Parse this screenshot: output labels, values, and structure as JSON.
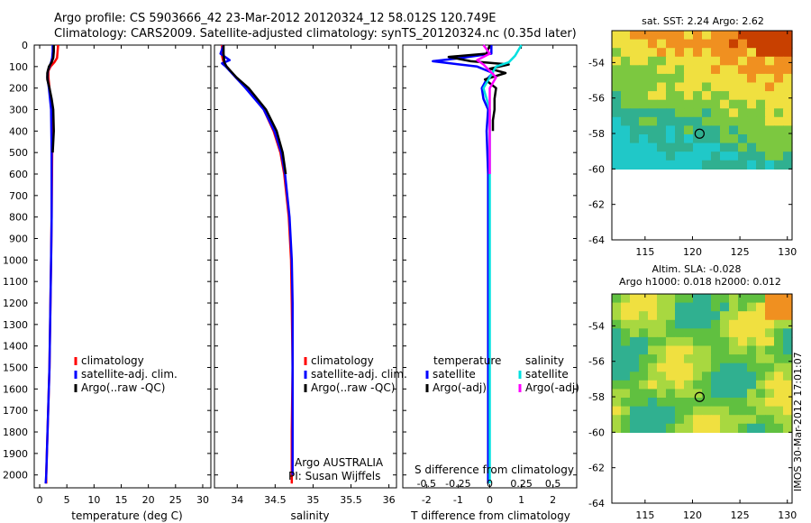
{
  "header": {
    "line1": "Argo profile: CS 5903666_42 23-Mar-2012 20120324_12 58.012S 120.749E",
    "line2": "Climatology: CARS2009. Satellite-adjusted climatology: synTS_20120324.nc (0.35d later)"
  },
  "credit": {
    "line1": "Argo AUSTRALIA",
    "line2": "PI: Susan Wijffels"
  },
  "stamp": "IMOS 30-Mar-2012 17:01:07",
  "colors": {
    "climatology": "#ff0000",
    "satellite": "#0000ff",
    "argo": "#000000",
    "t_satellite": "#0000ff",
    "t_argo": "#000000",
    "s_satellite": "#00e0e0",
    "s_argo": "#ff00ff"
  },
  "chart_data": [
    {
      "type": "line",
      "name": "temperature-profile",
      "xlabel": "temperature (deg C)",
      "ylabel": "",
      "xlim": [
        -1,
        31.5
      ],
      "ylim": [
        2060,
        0
      ],
      "x_ticks": [
        0,
        5,
        10,
        15,
        20,
        25,
        30
      ],
      "x_tick_labels": [
        "0",
        "5",
        "10",
        "15",
        "20",
        "25",
        "30"
      ],
      "y_ticks": [
        0,
        100,
        200,
        300,
        400,
        500,
        600,
        700,
        800,
        900,
        1000,
        1100,
        1200,
        1300,
        1400,
        1500,
        1600,
        1700,
        1800,
        1900,
        2000
      ],
      "y_tick_labels": [
        "0",
        "100",
        "200",
        "300",
        "400",
        "500",
        "600",
        "700",
        "800",
        "900",
        "1000",
        "1100",
        "1200",
        "1300",
        "1400",
        "1500",
        "1600",
        "1700",
        "1800",
        "1900",
        "2000"
      ],
      "legend": [
        "climatology",
        "satellite-adj. clim.",
        "Argo(..raw -QC)"
      ],
      "series": [
        {
          "name": "climatology",
          "color_key": "climatology",
          "depth": [
            0,
            30,
            60,
            80,
            100,
            120,
            150,
            200,
            300,
            500,
            800,
            1000,
            1500,
            2000,
            2040
          ],
          "values": [
            3.4,
            3.3,
            3.2,
            2.7,
            2.0,
            1.6,
            1.6,
            1.8,
            2.2,
            2.3,
            2.2,
            2.1,
            1.8,
            1.2,
            1.2
          ]
        },
        {
          "name": "satellite-adj. clim.",
          "color_key": "satellite",
          "depth": [
            0,
            30,
            60,
            80,
            100,
            120,
            150,
            200,
            300,
            500,
            800,
            1000,
            1500,
            2000,
            2040
          ],
          "values": [
            2.4,
            2.4,
            2.3,
            2.1,
            1.8,
            1.5,
            1.4,
            1.7,
            2.1,
            2.2,
            2.2,
            2.1,
            1.8,
            1.2,
            1.1
          ]
        },
        {
          "name": "Argo(..raw -QC)",
          "color_key": "argo",
          "depth": [
            0,
            30,
            60,
            80,
            100,
            130,
            160,
            200,
            250,
            300,
            400,
            500
          ],
          "values": [
            2.6,
            2.6,
            2.5,
            2.2,
            1.7,
            1.4,
            1.4,
            1.8,
            2.2,
            2.5,
            2.6,
            2.4
          ]
        }
      ]
    },
    {
      "type": "line",
      "name": "salinity-profile",
      "xlabel": "salinity",
      "xlim": [
        33.7,
        36.1
      ],
      "ylim": [
        2060,
        0
      ],
      "x_ticks": [
        34,
        34.5,
        35,
        35.5,
        36
      ],
      "x_tick_labels": [
        "34",
        "34.5",
        "35",
        "35.5",
        "36"
      ],
      "legend": [
        "climatology",
        "satellite-adj. clim.",
        "Argo(..raw -QC)"
      ],
      "series": [
        {
          "name": "climatology",
          "color_key": "climatology",
          "depth": [
            0,
            50,
            80,
            100,
            150,
            200,
            300,
            400,
            500,
            600,
            800,
            1000,
            1200,
            1500,
            1800,
            2000,
            2040
          ],
          "values": [
            33.8,
            33.8,
            33.82,
            33.86,
            33.98,
            34.12,
            34.35,
            34.48,
            34.57,
            34.62,
            34.68,
            34.71,
            34.72,
            34.73,
            34.72,
            34.72,
            34.72
          ]
        },
        {
          "name": "satellite-adj. clim.",
          "color_key": "satellite",
          "depth": [
            0,
            40,
            70,
            85,
            100,
            150,
            200,
            300,
            400,
            500,
            600,
            800,
            1000,
            1200,
            1500,
            1800,
            2000
          ],
          "values": [
            33.82,
            33.78,
            33.9,
            33.8,
            33.85,
            33.98,
            34.11,
            34.35,
            34.49,
            34.58,
            34.63,
            34.69,
            34.72,
            34.73,
            34.73,
            34.73,
            34.73
          ]
        },
        {
          "name": "Argo(..raw -QC)",
          "color_key": "argo",
          "depth": [
            0,
            40,
            80,
            100,
            150,
            200,
            300,
            400,
            500,
            600
          ],
          "values": [
            33.82,
            33.82,
            33.83,
            33.86,
            33.99,
            34.15,
            34.38,
            34.52,
            34.6,
            34.64
          ]
        }
      ]
    },
    {
      "type": "line",
      "name": "difference-profile",
      "xlabel": "T difference from climatology",
      "top_label": "S difference from climatology",
      "xlim": [
        -2.75,
        2.75
      ],
      "ylim": [
        2060,
        0
      ],
      "x_ticks": [
        -2,
        -1,
        0,
        1,
        2
      ],
      "x_tick_labels": [
        "-2",
        "-1",
        "0",
        "1",
        "2"
      ],
      "s_ticks": [
        -0.5,
        -0.25,
        0,
        0.25,
        0.5
      ],
      "s_tick_labels": [
        "-0.5",
        "-0.25",
        "0",
        "0.25",
        "0.5"
      ],
      "legend_groups": [
        {
          "title": "temperature",
          "items": [
            "satellite",
            "Argo(-adj)"
          ]
        },
        {
          "title": "salinity",
          "items": [
            "satellite",
            "Argo(-adj)"
          ]
        }
      ],
      "series": [
        {
          "name": "temperature satellite",
          "color_key": "t_satellite",
          "depth": [
            0,
            40,
            60,
            75,
            100,
            130,
            160,
            200,
            250,
            300,
            400,
            600,
            1000,
            1500,
            2000,
            2040
          ],
          "values": [
            0.05,
            0.05,
            -0.9,
            -1.8,
            -0.4,
            0.1,
            -0.1,
            -0.25,
            -0.2,
            -0.05,
            -0.1,
            -0.05,
            -0.05,
            -0.05,
            -0.05,
            -0.05
          ]
        },
        {
          "name": "temperature Argo(-adj)",
          "color_key": "t_argo",
          "depth": [
            0,
            40,
            55,
            75,
            90,
            110,
            130,
            160,
            200,
            250,
            300,
            350,
            400
          ],
          "values": [
            0.0,
            -0.1,
            -1.3,
            -0.6,
            0.6,
            0.0,
            0.5,
            -0.15,
            0.2,
            0.15,
            0.15,
            0.1,
            0.1
          ]
        },
        {
          "name": "salinity satellite",
          "color_key": "s_satellite",
          "depth": [
            0,
            50,
            80,
            100,
            150,
            200,
            300,
            500,
            1000,
            1500,
            2000,
            2040
          ],
          "values": [
            0.25,
            0.2,
            0.15,
            0.05,
            0.0,
            -0.05,
            0.0,
            0.0,
            0.0,
            0.0,
            0.0,
            0.0
          ]
        },
        {
          "name": "salinity Argo(-adj)",
          "color_key": "s_argo",
          "depth": [
            0,
            40,
            70,
            90,
            120,
            150,
            200,
            300,
            400,
            600
          ],
          "values": [
            -0.05,
            0.0,
            -0.1,
            -0.05,
            0.0,
            0.05,
            0.0,
            0.0,
            0.0,
            0.0
          ]
        }
      ]
    },
    {
      "type": "heatmap",
      "name": "sst-map",
      "title": "sat. SST: 2.24 Argo: 2.62",
      "xlim": [
        111.5,
        130.5
      ],
      "ylim": [
        -64,
        -52.2
      ],
      "x_ticks": [
        115,
        120,
        125,
        130
      ],
      "x_tick_labels": [
        "115",
        "120",
        "125",
        "130"
      ],
      "y_ticks": [
        -64,
        -62,
        -60,
        -58,
        -56,
        -54
      ],
      "y_tick_labels": [
        "-64",
        "-62",
        "-60",
        "-58",
        "-56",
        "-54"
      ],
      "data_ylim": [
        -60,
        -52.2
      ],
      "marker": {
        "lon": 120.749,
        "lat": -58.012
      }
    },
    {
      "type": "heatmap",
      "name": "sla-map",
      "title1": "Altim. SLA: -0.028",
      "title2": "Argo h1000: 0.018 h2000: 0.012",
      "xlim": [
        111.5,
        130.5
      ],
      "ylim": [
        -64,
        -52.2
      ],
      "x_ticks": [
        115,
        120,
        125,
        130
      ],
      "x_tick_labels": [
        "115",
        "120",
        "125",
        "130"
      ],
      "y_ticks": [
        -64,
        -62,
        -60,
        -58,
        -56,
        -54
      ],
      "y_tick_labels": [
        "-64",
        "-62",
        "-60",
        "-58",
        "-56",
        "-54"
      ],
      "data_ylim": [
        -60,
        -52.2
      ],
      "marker": {
        "lon": 120.749,
        "lat": -58.012
      }
    }
  ]
}
